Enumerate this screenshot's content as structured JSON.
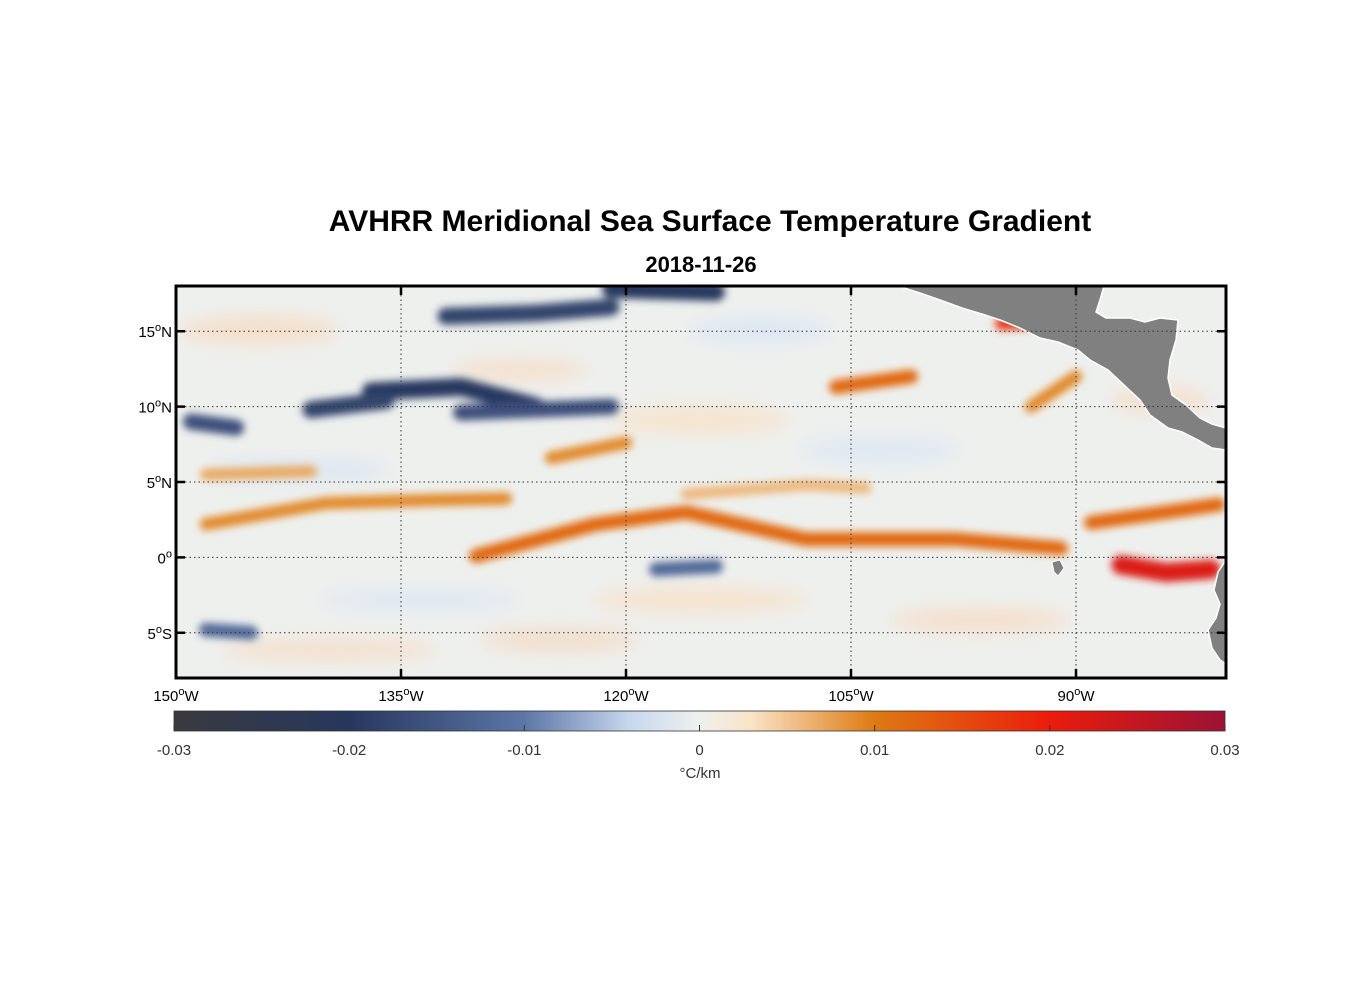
{
  "title": "AVHRR Meridional Sea Surface Temperature Gradient",
  "subtitle": "2018-11-26",
  "map": {
    "lon_range": [
      -150,
      -80
    ],
    "lat_range": [
      -8,
      18
    ],
    "lat_ticks": [
      {
        "value": 15,
        "num": "15",
        "hemi": "N"
      },
      {
        "value": 10,
        "num": "10",
        "hemi": "N"
      },
      {
        "value": 5,
        "num": "5",
        "hemi": "N"
      },
      {
        "value": 0,
        "num": "0",
        "hemi": ""
      },
      {
        "value": -5,
        "num": "5",
        "hemi": "S"
      }
    ],
    "lon_ticks": [
      {
        "value": -150,
        "num": "150",
        "hemi": "W"
      },
      {
        "value": -135,
        "num": "135",
        "hemi": "W"
      },
      {
        "value": -120,
        "num": "120",
        "hemi": "W"
      },
      {
        "value": -105,
        "num": "105",
        "hemi": "W"
      },
      {
        "value": -90,
        "num": "90",
        "hemi": "W"
      }
    ],
    "land_color": "#808080"
  },
  "colorbar": {
    "min": -0.03,
    "max": 0.03,
    "ticks": [
      {
        "value": -0.03,
        "label": "-0.03"
      },
      {
        "value": -0.02,
        "label": "-0.02"
      },
      {
        "value": -0.01,
        "label": "-0.01"
      },
      {
        "value": 0,
        "label": "0"
      },
      {
        "value": 0.01,
        "label": "0.01"
      },
      {
        "value": 0.02,
        "label": "0.02"
      },
      {
        "value": 0.03,
        "label": "0.03"
      }
    ],
    "unit": "°C/km",
    "stops": [
      {
        "value": -0.03,
        "color": "#3a3a3e"
      },
      {
        "value": -0.02,
        "color": "#26375e"
      },
      {
        "value": -0.01,
        "color": "#5c76a6"
      },
      {
        "value": -0.004,
        "color": "#c6d8ee"
      },
      {
        "value": 0,
        "color": "#eef1ee"
      },
      {
        "value": 0.003,
        "color": "#fae3c6"
      },
      {
        "value": 0.01,
        "color": "#de7a12"
      },
      {
        "value": 0.02,
        "color": "#eb1c0c"
      },
      {
        "value": 0.03,
        "color": "#9b1234"
      }
    ]
  },
  "chart_data": {
    "type": "heatmap",
    "title": "AVHRR Meridional Sea Surface Temperature Gradient",
    "subtitle": "2018-11-26",
    "variable": "meridional SST gradient",
    "units": "°C/km",
    "xlabel": "",
    "ylabel": "",
    "xlim": [
      -150,
      -80
    ],
    "ylim": [
      -8,
      18
    ],
    "clim": [
      -0.03,
      0.03
    ],
    "features": [
      {
        "kind": "band",
        "sign": "positive",
        "points": [
          [
            -130,
            0.1
          ],
          [
            -122,
            2.2
          ],
          [
            -116,
            3
          ],
          [
            -108,
            1.2
          ],
          [
            -98,
            1.2
          ],
          [
            -91,
            0.6
          ]
        ],
        "value": 0.012
      },
      {
        "kind": "band",
        "sign": "positive",
        "points": [
          [
            -148,
            2.2
          ],
          [
            -140,
            3.6
          ],
          [
            -133,
            3.8
          ],
          [
            -128,
            3.9
          ]
        ],
        "value": 0.009
      },
      {
        "kind": "band",
        "sign": "positive",
        "points": [
          [
            -116,
            4.2
          ],
          [
            -108,
            4.8
          ],
          [
            -104,
            4.6
          ]
        ],
        "value": 0.006
      },
      {
        "kind": "band",
        "sign": "positive",
        "points": [
          [
            -125,
            6.6
          ],
          [
            -120,
            7.6
          ]
        ],
        "value": 0.009
      },
      {
        "kind": "band",
        "sign": "positive",
        "points": [
          [
            -106,
            11.3
          ],
          [
            -101,
            12
          ]
        ],
        "value": 0.012
      },
      {
        "kind": "band",
        "sign": "positive",
        "points": [
          [
            -87,
            -0.5
          ],
          [
            -84,
            -1
          ],
          [
            -81,
            -0.8
          ]
        ],
        "value": 0.022
      },
      {
        "kind": "band",
        "sign": "positive",
        "points": [
          [
            -89,
            2.3
          ],
          [
            -84,
            3
          ],
          [
            -80.5,
            3.5
          ]
        ],
        "value": 0.012
      },
      {
        "kind": "blob",
        "sign": "positive",
        "points": [
          [
            -95,
            15.5
          ],
          [
            -92,
            15.6
          ]
        ],
        "value": 0.018
      },
      {
        "kind": "band",
        "sign": "negative",
        "points": [
          [
            -137,
            11
          ],
          [
            -131,
            11.3
          ],
          [
            -126,
            10
          ]
        ],
        "value": -0.02
      },
      {
        "kind": "band",
        "sign": "negative",
        "points": [
          [
            -132,
            16
          ],
          [
            -126,
            16.2
          ],
          [
            -121,
            16.6
          ]
        ],
        "value": -0.018
      },
      {
        "kind": "band",
        "sign": "negative",
        "points": [
          [
            -121,
            17.8
          ],
          [
            -114,
            17.6
          ]
        ],
        "value": -0.02
      },
      {
        "kind": "band",
        "sign": "negative",
        "points": [
          [
            -141,
            9.8
          ],
          [
            -136,
            10.4
          ]
        ],
        "value": -0.018
      },
      {
        "kind": "band",
        "sign": "negative",
        "points": [
          [
            -149,
            9
          ],
          [
            -146,
            8.6
          ]
        ],
        "value": -0.016
      },
      {
        "kind": "band",
        "sign": "negative",
        "points": [
          [
            -131,
            9.6
          ],
          [
            -126,
            9.8
          ],
          [
            -121,
            10
          ]
        ],
        "value": -0.016
      },
      {
        "kind": "band",
        "sign": "negative",
        "points": [
          [
            -148,
            -4.8
          ],
          [
            -145,
            -5
          ]
        ],
        "value": -0.012
      },
      {
        "kind": "band",
        "sign": "negative",
        "points": [
          [
            -118,
            -0.8
          ],
          [
            -114,
            -0.6
          ]
        ],
        "value": -0.012
      },
      {
        "kind": "band",
        "sign": "positive",
        "points": [
          [
            -148,
            5.5
          ],
          [
            -141,
            5.7
          ]
        ],
        "value": 0.007
      },
      {
        "kind": "band",
        "sign": "positive",
        "points": [
          [
            -93,
            10
          ],
          [
            -90,
            12
          ]
        ],
        "value": 0.009
      }
    ]
  }
}
